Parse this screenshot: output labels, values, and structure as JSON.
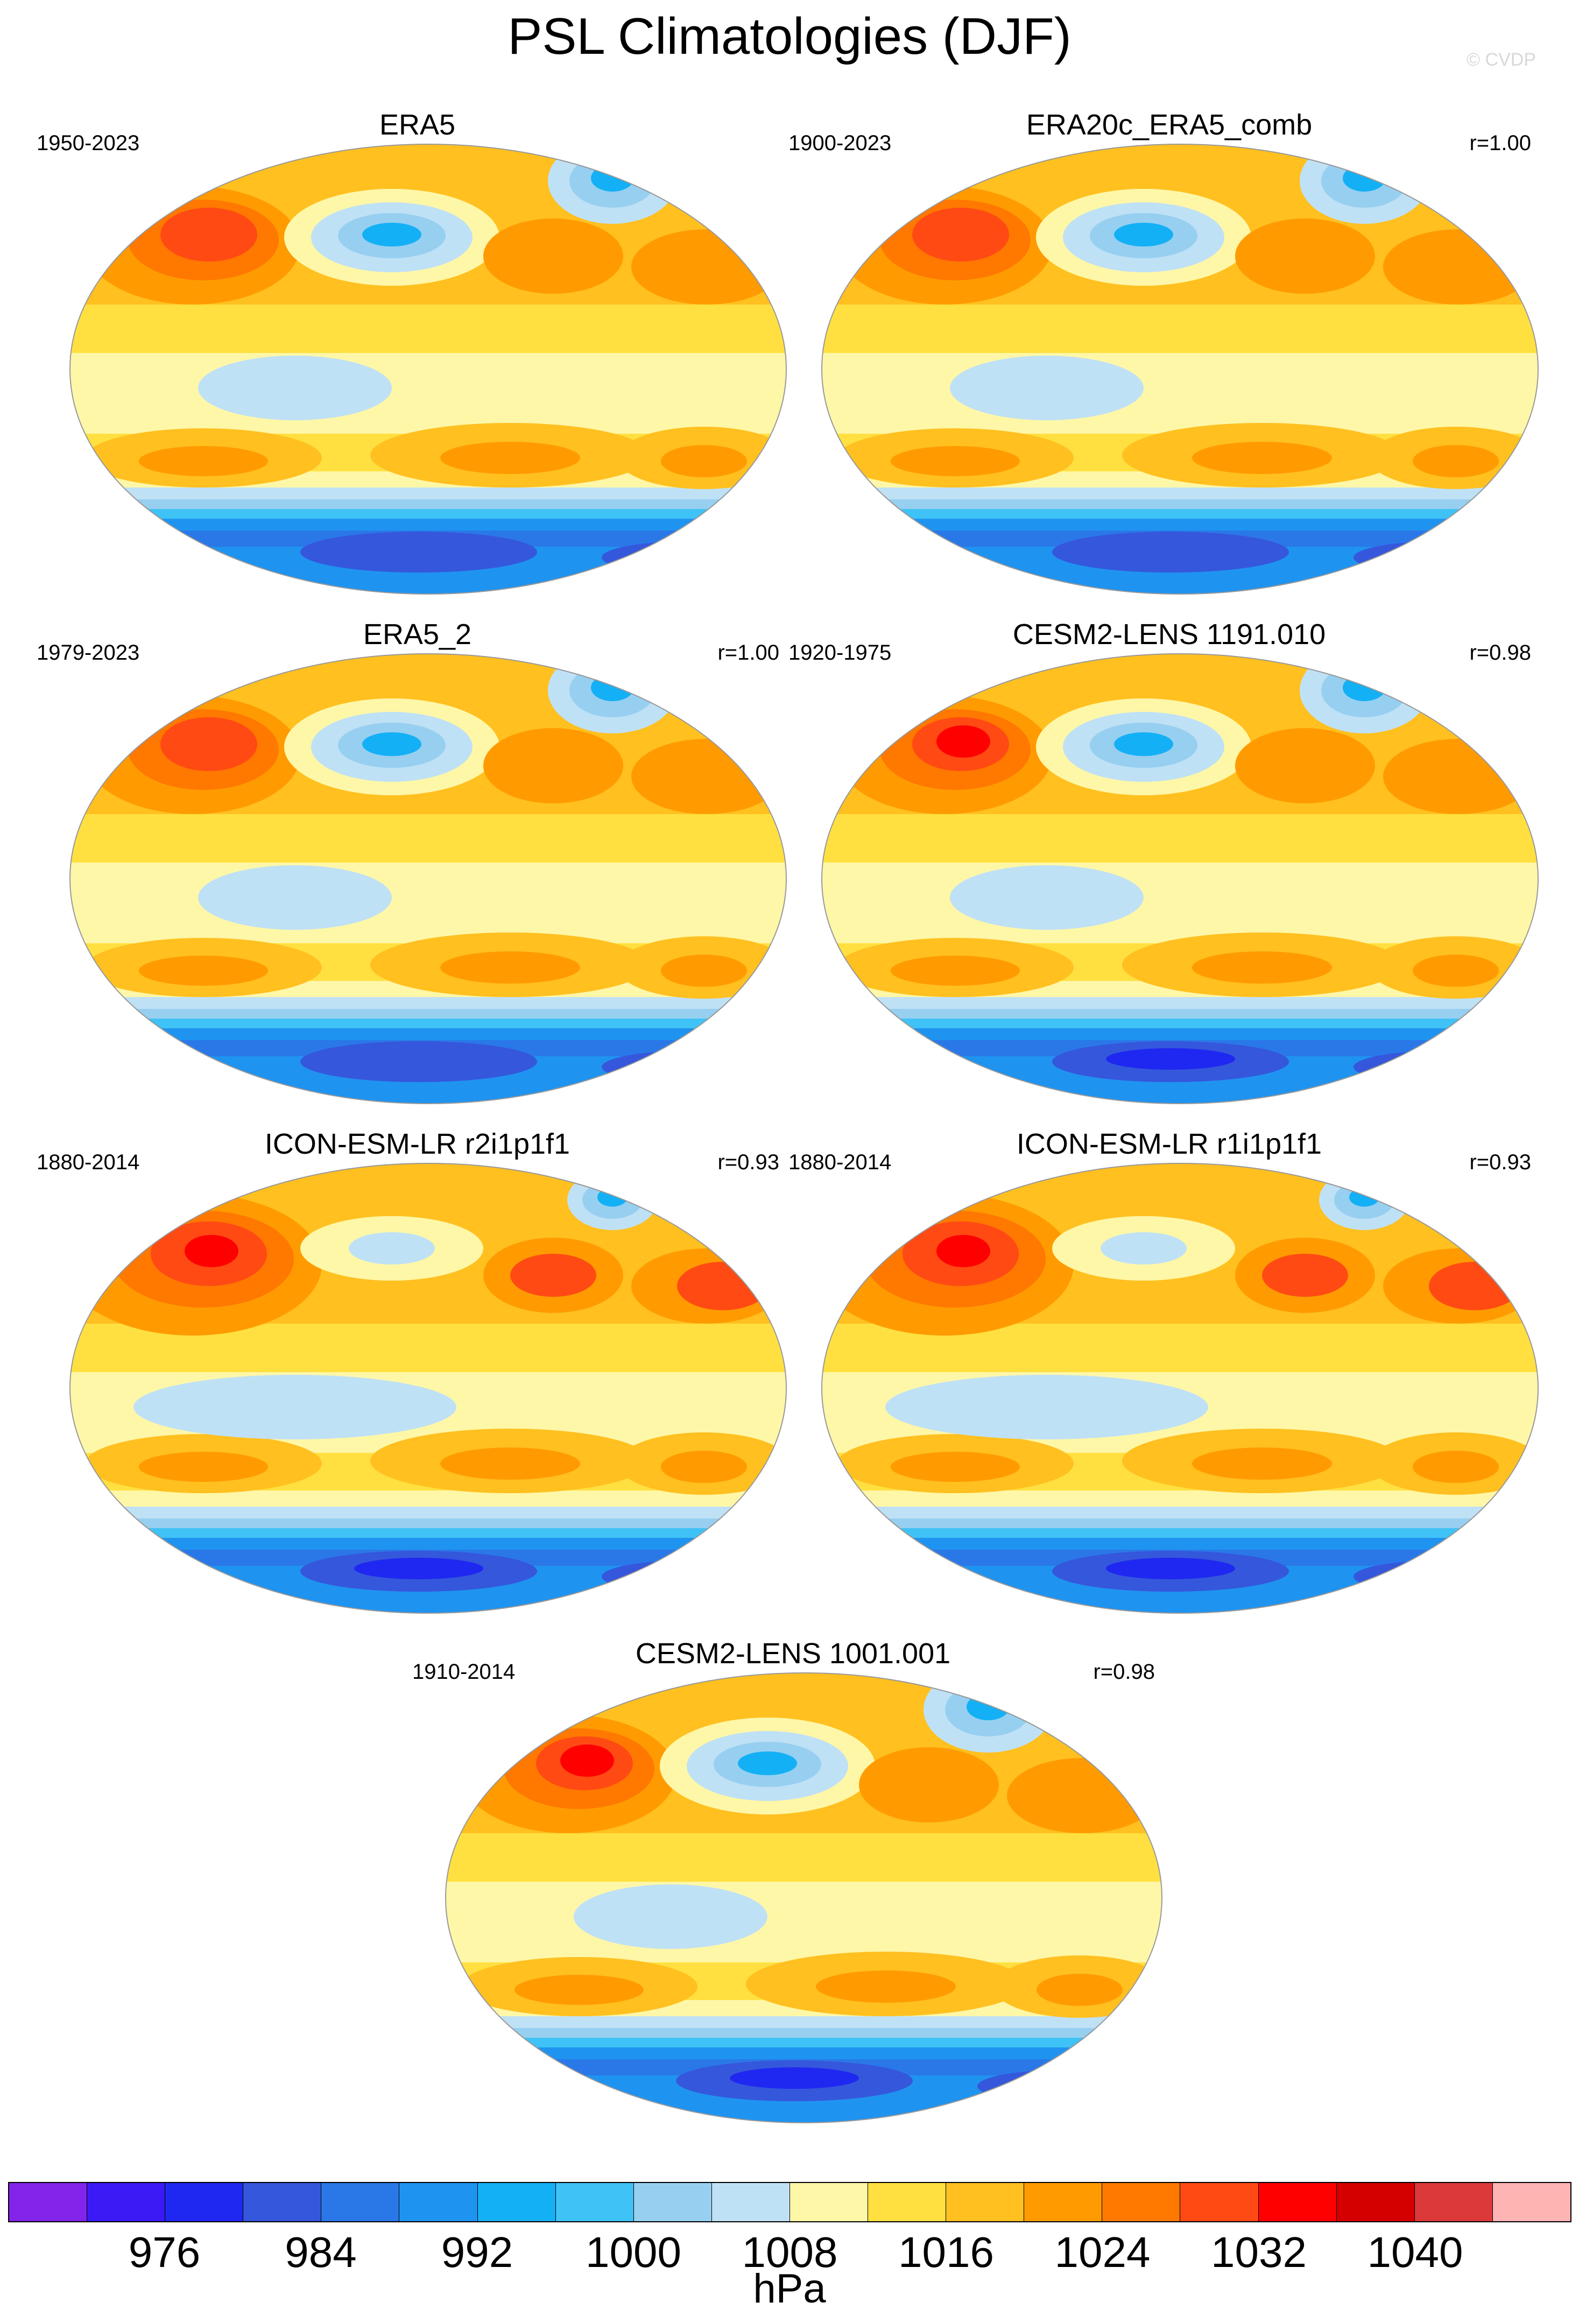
{
  "title": "PSL Climatologies (DJF)",
  "copyright": "© CVDP",
  "panels": [
    {
      "title": "ERA5",
      "period": "1950-2023",
      "corr": "",
      "variant": "reanalysis"
    },
    {
      "title": "ERA20c_ERA5_comb",
      "period": "1900-2023",
      "corr": "r=1.00",
      "variant": "reanalysis"
    },
    {
      "title": "ERA5_2",
      "period": "1979-2023",
      "corr": "r=1.00",
      "variant": "reanalysis"
    },
    {
      "title": "CESM2-LENS 1191.010",
      "period": "1920-1975",
      "corr": "r=0.98",
      "variant": "cesm"
    },
    {
      "title": "ICON-ESM-LR r2i1p1f1",
      "period": "1880-2014",
      "corr": "r=0.93",
      "variant": "icon"
    },
    {
      "title": "ICON-ESM-LR r1i1p1f1",
      "period": "1880-2014",
      "corr": "r=0.93",
      "variant": "icon"
    },
    {
      "title": "CESM2-LENS 1001.001",
      "period": "1910-2014",
      "corr": "r=0.98",
      "variant": "cesm"
    }
  ],
  "colorbar": {
    "units": "hPa",
    "tick_labels": [
      "976",
      "984",
      "992",
      "1000",
      "1008",
      "1016",
      "1024",
      "1032",
      "1040"
    ],
    "levels": [
      972,
      976,
      980,
      984,
      988,
      992,
      996,
      1000,
      1004,
      1008,
      1012,
      1016,
      1020,
      1024,
      1028,
      1032,
      1036,
      1040,
      1044
    ],
    "colors": [
      "#8224ea",
      "#3c1af5",
      "#1f28f0",
      "#3557dc",
      "#2a78e8",
      "#1f93f0",
      "#14b0f5",
      "#3fc2f5",
      "#97cff0",
      "#bfe1f5",
      "#fff7a8",
      "#ffe040",
      "#ffc020",
      "#ff9b00",
      "#ff7800",
      "#ff4a14",
      "#ff0000",
      "#d40000",
      "#dc3a3a",
      "#ffb4b4"
    ]
  }
}
